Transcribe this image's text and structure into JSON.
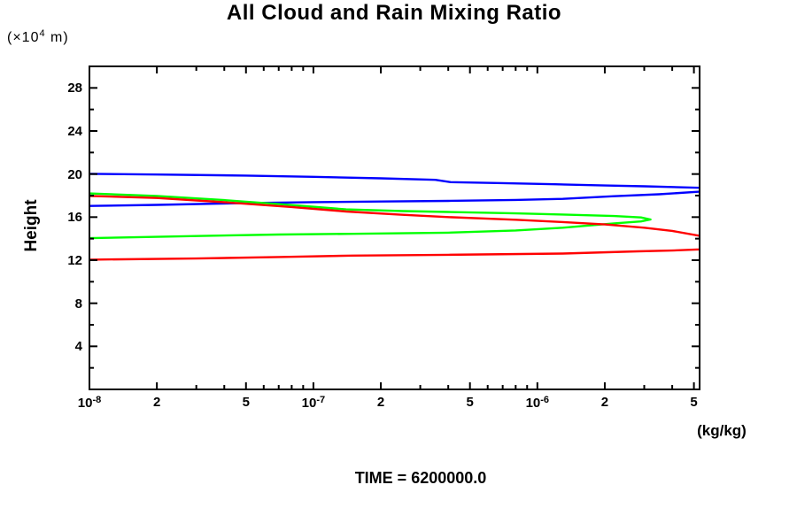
{
  "chart_data": {
    "type": "line",
    "title": "All Cloud and Rain Mixing Ratio",
    "ylabel": "Height",
    "y_axis_unit": {
      "prefix": "(×10",
      "sup": "4",
      "suffix": " m)"
    },
    "xlabel": "(kg/kg)",
    "footer_label": "TIME = 6200000.0",
    "x_scale": "log",
    "xlim": [
      1e-08,
      5.3e-06
    ],
    "ylim": [
      0,
      30
    ],
    "grid": false,
    "legend": "none",
    "frame_color": "#000000",
    "y_major_ticks": [
      4,
      8,
      12,
      16,
      20,
      24,
      28
    ],
    "y_minor_ticks": [
      2,
      6,
      10,
      14,
      18,
      22,
      26
    ],
    "x_tick_labels": [
      {
        "v": 1e-08,
        "base": "10",
        "sup": "-8"
      },
      {
        "v": 2e-08,
        "base": "2"
      },
      {
        "v": 5e-08,
        "base": "5"
      },
      {
        "v": 1e-07,
        "base": "10",
        "sup": "-7"
      },
      {
        "v": 2e-07,
        "base": "2"
      },
      {
        "v": 5e-07,
        "base": "5"
      },
      {
        "v": 1e-06,
        "base": "10",
        "sup": "-6"
      },
      {
        "v": 2e-06,
        "base": "2"
      },
      {
        "v": 5e-06,
        "base": "5"
      }
    ],
    "x_minor_ticks": [
      3e-08,
      4e-08,
      6e-08,
      7e-08,
      8e-08,
      9e-08,
      3e-07,
      4e-07,
      6e-07,
      7e-07,
      8e-07,
      9e-07,
      3e-06,
      4e-06
    ],
    "series": [
      {
        "name": "blue-profile",
        "color": "#0000ff",
        "points": [
          [
            1e-08,
            20.02
          ],
          [
            2e-08,
            19.96
          ],
          [
            5e-08,
            19.86
          ],
          [
            1e-07,
            19.74
          ],
          [
            2e-07,
            19.6
          ],
          [
            3.5e-07,
            19.46
          ],
          [
            4.1e-07,
            19.25
          ],
          [
            7e-07,
            19.16
          ],
          [
            1.2e-06,
            19.05
          ],
          [
            2e-06,
            18.94
          ],
          [
            3e-06,
            18.86
          ],
          [
            5.3e-06,
            18.72
          ],
          [
            7.5e-06,
            18.55
          ],
          [
            5.3e-06,
            18.36
          ],
          [
            3.5e-06,
            18.12
          ],
          [
            2.2e-06,
            17.94
          ],
          [
            1.3e-06,
            17.7
          ],
          [
            8e-07,
            17.6
          ],
          [
            4e-07,
            17.51
          ],
          [
            2e-07,
            17.45
          ],
          [
            1e-07,
            17.39
          ],
          [
            5e-08,
            17.31
          ],
          [
            2e-08,
            17.14
          ],
          [
            1e-08,
            17.04
          ]
        ]
      },
      {
        "name": "green-profile",
        "color": "#00ff00",
        "points": [
          [
            1e-08,
            18.2
          ],
          [
            2e-08,
            17.97
          ],
          [
            4e-08,
            17.58
          ],
          [
            8e-08,
            17.12
          ],
          [
            1.4e-07,
            16.72
          ],
          [
            2.5e-07,
            16.56
          ],
          [
            4e-07,
            16.48
          ],
          [
            8e-07,
            16.35
          ],
          [
            1.3e-06,
            16.24
          ],
          [
            2.2e-06,
            16.1
          ],
          [
            2.9e-06,
            15.97
          ],
          [
            3.2e-06,
            15.78
          ],
          [
            2.9e-06,
            15.6
          ],
          [
            2.2e-06,
            15.42
          ],
          [
            1.3e-06,
            15.02
          ],
          [
            8e-07,
            14.76
          ],
          [
            4e-07,
            14.56
          ],
          [
            1.5e-07,
            14.45
          ],
          [
            7e-08,
            14.38
          ],
          [
            3e-08,
            14.24
          ],
          [
            1e-08,
            14.05
          ]
        ]
      },
      {
        "name": "red-profile",
        "color": "#ff0000",
        "points": [
          [
            1e-08,
            17.97
          ],
          [
            2e-08,
            17.78
          ],
          [
            4e-08,
            17.38
          ],
          [
            8e-08,
            16.94
          ],
          [
            1.4e-07,
            16.52
          ],
          [
            2.5e-07,
            16.22
          ],
          [
            4e-07,
            16.0
          ],
          [
            8e-07,
            15.76
          ],
          [
            1.3e-06,
            15.54
          ],
          [
            2e-06,
            15.32
          ],
          [
            3e-06,
            15.02
          ],
          [
            4e-06,
            14.72
          ],
          [
            5.3e-06,
            14.26
          ],
          [
            7e-06,
            13.6
          ],
          [
            5.3e-06,
            13.0
          ],
          [
            4e-06,
            12.9
          ],
          [
            2.8e-06,
            12.82
          ],
          [
            1.3e-06,
            12.62
          ],
          [
            4e-07,
            12.5
          ],
          [
            1.5e-07,
            12.43
          ],
          [
            7e-08,
            12.3
          ],
          [
            3e-08,
            12.16
          ],
          [
            1e-08,
            12.05
          ]
        ]
      }
    ]
  }
}
